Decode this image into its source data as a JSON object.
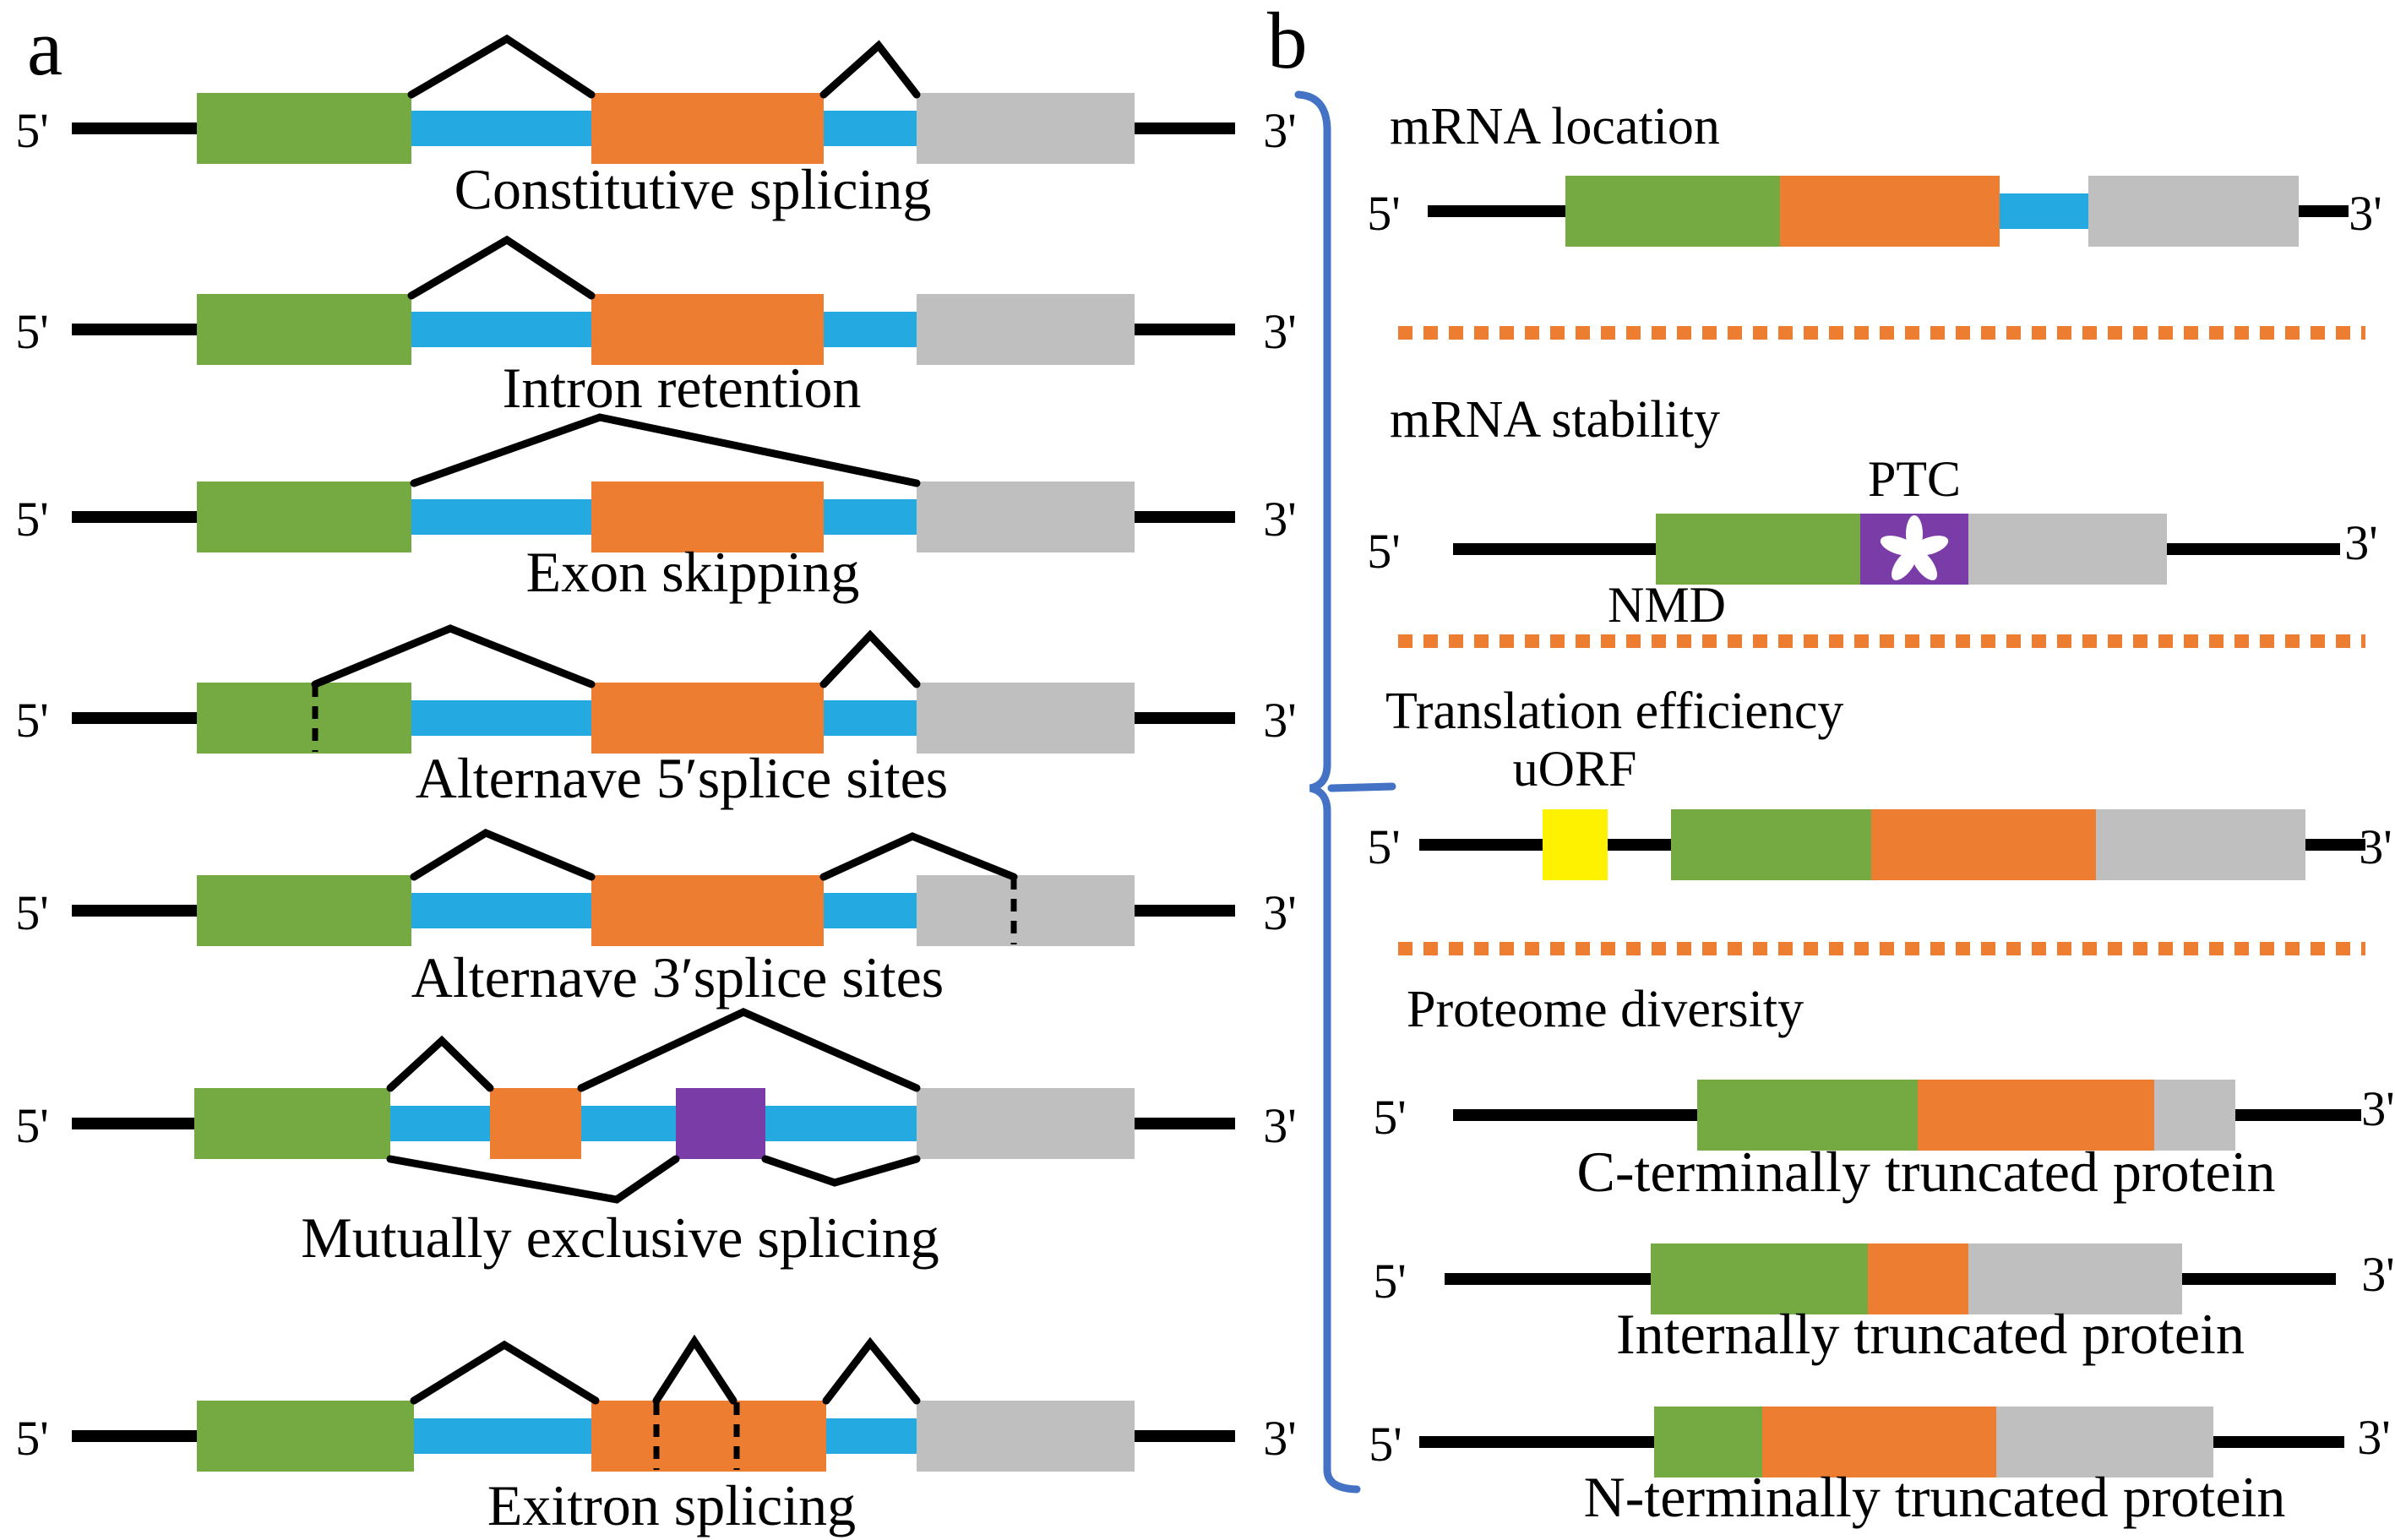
{
  "panel_a": {
    "label": "a",
    "terminus_5": "5'",
    "terminus_3": "3'",
    "rows": [
      {
        "label": "Constitutive splicing"
      },
      {
        "label": "Intron retention"
      },
      {
        "label": "Exon skipping"
      },
      {
        "label": "Alternave 5′splice sites"
      },
      {
        "label": "Alternave 3′splice sites"
      },
      {
        "label": "Mutually exclusive splicing"
      },
      {
        "label": "Exitron splicing"
      }
    ]
  },
  "panel_b": {
    "label": "b",
    "terminus_5": "5'",
    "terminus_3": "3'",
    "sections": [
      {
        "heading": "mRNA location"
      },
      {
        "heading": "mRNA stability",
        "ptc_label": "PTC",
        "nmd_label": "NMD",
        "ptc_marker": "asterisk"
      },
      {
        "heading": "Translation efficiency",
        "uorf_label": "uORF"
      },
      {
        "heading": "Proteome diversity",
        "rows": [
          {
            "label": "C-terminally truncated protein"
          },
          {
            "label": "Internally truncated protein"
          },
          {
            "label": "N-terminally truncated protein"
          }
        ]
      }
    ]
  },
  "colors": {
    "exon_green": "#74AA41",
    "exon_orange": "#ED7D31",
    "intron_blue": "#25A9E1",
    "exon_gray": "#BFBFBF",
    "exon_purple": "#7A3DA8",
    "uorf_yellow": "#FFF200",
    "separator_orange": "#ED7D31",
    "brace_blue": "#4472C4",
    "line_black": "#000000",
    "ptc_asterisk_white": "#FFFFFF"
  }
}
